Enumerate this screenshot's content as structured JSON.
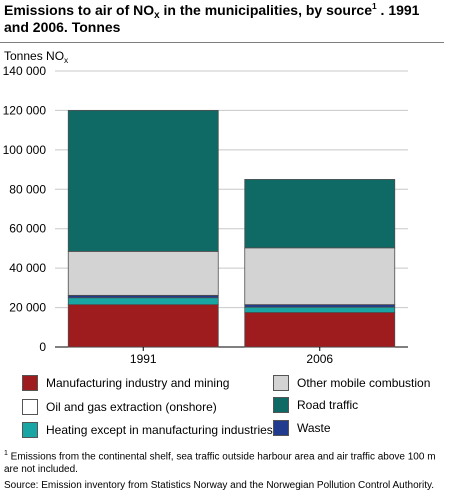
{
  "title": {
    "line1_a": "Emissions to air of NO",
    "line1_sub": "x",
    "line1_b": " in the municipalities, by source",
    "line1_sup": "1",
    "line1_c": " . 1991",
    "line2": "and 2006. Tonnes"
  },
  "unit": {
    "text": "Tonnes NO",
    "sub": "x"
  },
  "chart_data": {
    "type": "bar",
    "stacked": true,
    "categories": [
      "1991",
      "2006"
    ],
    "ylim": [
      0,
      140000
    ],
    "yticks": [
      0,
      20000,
      40000,
      60000,
      80000,
      100000,
      120000,
      140000
    ],
    "ytick_labels": [
      "0",
      "20 000",
      "40 000",
      "60 000",
      "80 000",
      "100 000",
      "120 000",
      "140 000"
    ],
    "grid": true,
    "legend_position": "bottom",
    "series": [
      {
        "name": "Manufacturing industry and mining",
        "color": "#9e1b1e",
        "values": [
          21500,
          17500
        ]
      },
      {
        "name": "Oil and gas extraction (onshore)",
        "color": "#ffffff",
        "values": [
          0,
          0
        ]
      },
      {
        "name": "Heating except in manufacturing industries",
        "color": "#1aa5a5",
        "values": [
          3500,
          2700
        ]
      },
      {
        "name": "Waste",
        "color": "#213b8f",
        "values": [
          1200,
          1300
        ]
      },
      {
        "name": "Other mobile combustion",
        "color": "#d3d3d3",
        "values": [
          22300,
          28800
        ]
      },
      {
        "name": "Road traffic",
        "color": "#0f6a66",
        "values": [
          71500,
          34700
        ]
      }
    ]
  },
  "footnote": {
    "mark": "1",
    "text": " Emissions from the continental shelf, sea traffic outside harbour area and air traffic above 100 m are not included."
  },
  "source": "Source: Emission inventory from Statistics Norway and the Norwegian Pollution Control Authority."
}
